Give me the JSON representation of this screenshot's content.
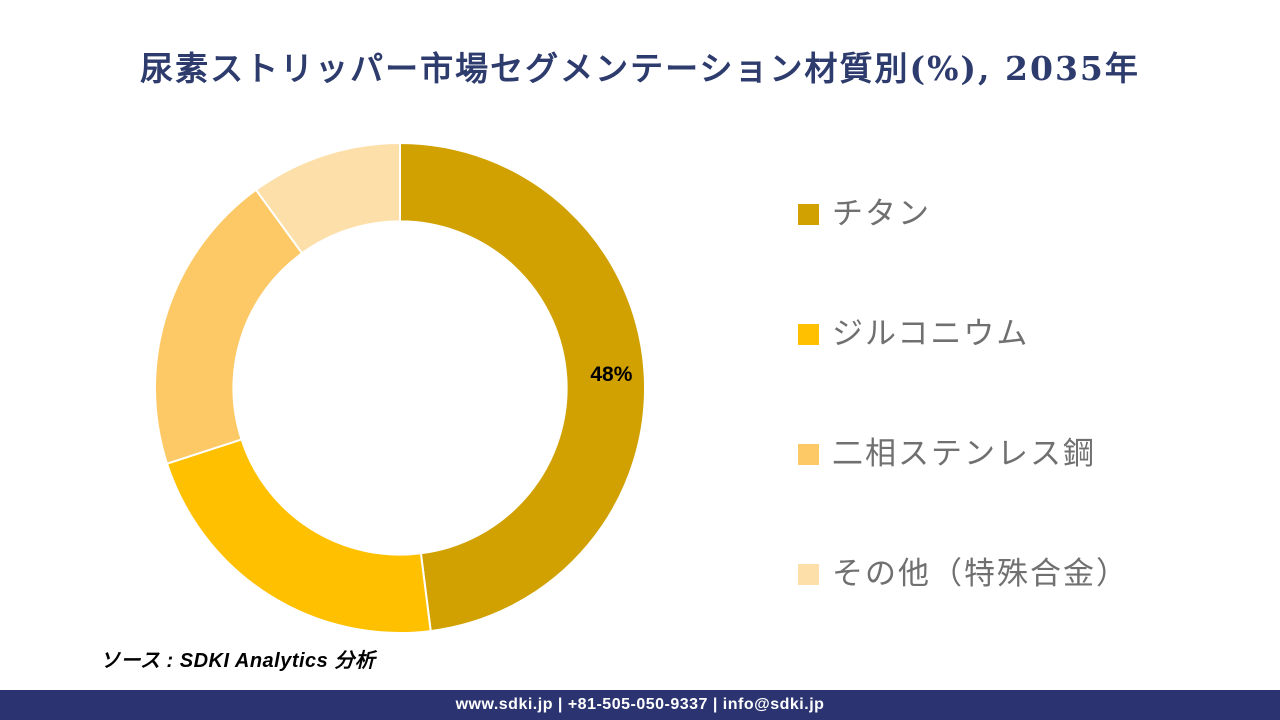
{
  "page": {
    "title": "尿素ストリッパー市場セグメンテーション材質別(%), 2035年",
    "source_note": "ソース : SDKI Analytics 分析",
    "footer_text": "www.sdki.jp | +81-505-050-9337 | info@sdki.jp"
  },
  "colors": {
    "title_color": "#2d3b6d",
    "footer_bg": "#2b3470",
    "legend_text": "#707070",
    "data_label_color": "#000000",
    "segment_divider": "#ffffff"
  },
  "chart_data": {
    "type": "pie",
    "subtype": "donut",
    "title": "尿素ストリッパー市場セグメンテーション材質別(%), 2035年",
    "unit": "%",
    "categories": [
      "チタン",
      "ジルコニウム",
      "二相ステンレス鋼",
      "その他（特殊合金）"
    ],
    "values": [
      48,
      22,
      20,
      10
    ],
    "colors": [
      "#D1A102",
      "#FFC000",
      "#FCC966",
      "#FDDFA9"
    ],
    "start_angle_deg": 0,
    "direction": "clockwise",
    "donut_hole_ratio": 0.68,
    "legend_position": "right",
    "visible_data_labels": [
      {
        "segment_index": 0,
        "text": "48%"
      }
    ]
  }
}
